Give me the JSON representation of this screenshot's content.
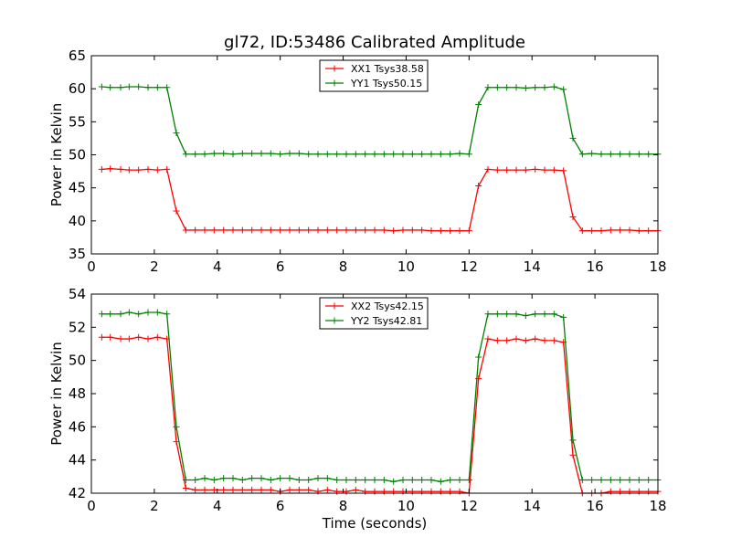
{
  "figure": {
    "title": "gl72, ID:53486 Calibrated Amplitude",
    "xlabel": "Time (seconds)"
  },
  "chart_data": [
    {
      "type": "line",
      "title": "gl72, ID:53486 Calibrated Amplitude",
      "xlabel": "",
      "ylabel": "Power in Kelvin",
      "xlim": [
        0,
        18
      ],
      "ylim": [
        35,
        65
      ],
      "xticks": [
        0,
        2,
        4,
        6,
        8,
        10,
        12,
        14,
        16,
        18
      ],
      "yticks": [
        35,
        40,
        45,
        50,
        55,
        60,
        65
      ],
      "grid": false,
      "legend": "top-center",
      "x": [
        0.33,
        0.6,
        0.93,
        1.2,
        1.5,
        1.8,
        2.1,
        2.4,
        2.7,
        3.0,
        3.3,
        3.6,
        3.9,
        4.2,
        4.5,
        4.8,
        5.1,
        5.4,
        5.7,
        6.0,
        6.3,
        6.6,
        6.9,
        7.2,
        7.5,
        7.8,
        8.1,
        8.4,
        8.7,
        9.0,
        9.3,
        9.6,
        9.9,
        10.2,
        10.5,
        10.8,
        11.1,
        11.4,
        11.7,
        12.0,
        12.3,
        12.6,
        12.9,
        13.2,
        13.5,
        13.8,
        14.1,
        14.4,
        14.7,
        15.0,
        15.3,
        15.6,
        15.9,
        16.2,
        16.5,
        16.8,
        17.1,
        17.4,
        17.7,
        18.0
      ],
      "series": [
        {
          "name": "XX1 Tsys38.58",
          "color": "#ff0000",
          "values": [
            47.8,
            47.9,
            47.8,
            47.7,
            47.7,
            47.8,
            47.7,
            47.8,
            41.5,
            38.6,
            38.6,
            38.6,
            38.6,
            38.6,
            38.6,
            38.6,
            38.6,
            38.6,
            38.6,
            38.6,
            38.6,
            38.6,
            38.6,
            38.6,
            38.6,
            38.6,
            38.6,
            38.6,
            38.6,
            38.6,
            38.6,
            38.5,
            38.6,
            38.6,
            38.6,
            38.5,
            38.5,
            38.5,
            38.5,
            38.5,
            45.3,
            47.8,
            47.7,
            47.7,
            47.7,
            47.7,
            47.8,
            47.7,
            47.7,
            47.6,
            40.6,
            38.5,
            38.5,
            38.5,
            38.6,
            38.6,
            38.6,
            38.5,
            38.5,
            38.5
          ]
        },
        {
          "name": "YY1 Tsys50.15",
          "color": "#008000",
          "values": [
            60.3,
            60.2,
            60.2,
            60.3,
            60.3,
            60.2,
            60.2,
            60.2,
            53.3,
            50.1,
            50.1,
            50.1,
            50.2,
            50.2,
            50.1,
            50.2,
            50.2,
            50.2,
            50.2,
            50.1,
            50.2,
            50.2,
            50.1,
            50.1,
            50.1,
            50.1,
            50.1,
            50.1,
            50.1,
            50.1,
            50.1,
            50.1,
            50.1,
            50.1,
            50.1,
            50.1,
            50.1,
            50.1,
            50.2,
            50.1,
            57.6,
            60.2,
            60.2,
            60.2,
            60.2,
            60.1,
            60.2,
            60.2,
            60.3,
            59.9,
            52.5,
            50.1,
            50.2,
            50.1,
            50.1,
            50.1,
            50.1,
            50.1,
            50.1,
            50.1
          ]
        }
      ]
    },
    {
      "type": "line",
      "title": "",
      "xlabel": "Time (seconds)",
      "ylabel": "Power in Kelvin",
      "xlim": [
        0,
        18
      ],
      "ylim": [
        42,
        54
      ],
      "xticks": [
        0,
        2,
        4,
        6,
        8,
        10,
        12,
        14,
        16,
        18
      ],
      "yticks": [
        42,
        44,
        46,
        48,
        50,
        52,
        54
      ],
      "grid": false,
      "legend": "top-center",
      "x": [
        0.33,
        0.6,
        0.93,
        1.2,
        1.5,
        1.8,
        2.1,
        2.4,
        2.7,
        3.0,
        3.3,
        3.6,
        3.9,
        4.2,
        4.5,
        4.8,
        5.1,
        5.4,
        5.7,
        6.0,
        6.3,
        6.6,
        6.9,
        7.2,
        7.5,
        7.8,
        8.1,
        8.4,
        8.7,
        9.0,
        9.3,
        9.6,
        9.9,
        10.2,
        10.5,
        10.8,
        11.1,
        11.4,
        11.7,
        12.0,
        12.3,
        12.6,
        12.9,
        13.2,
        13.5,
        13.8,
        14.1,
        14.4,
        14.7,
        15.0,
        15.3,
        15.6,
        15.9,
        16.2,
        16.5,
        16.8,
        17.1,
        17.4,
        17.7,
        18.0
      ],
      "series": [
        {
          "name": "XX2 Tsys42.15",
          "color": "#ff0000",
          "values": [
            51.4,
            51.4,
            51.3,
            51.3,
            51.4,
            51.3,
            51.4,
            51.3,
            45.1,
            42.3,
            42.2,
            42.2,
            42.2,
            42.2,
            42.2,
            42.2,
            42.2,
            42.2,
            42.2,
            42.1,
            42.2,
            42.2,
            42.2,
            42.1,
            42.2,
            42.1,
            42.1,
            42.2,
            42.1,
            42.1,
            42.1,
            42.1,
            42.1,
            42.1,
            42.1,
            42.1,
            42.1,
            42.1,
            42.1,
            42.0,
            48.9,
            51.3,
            51.2,
            51.2,
            51.3,
            51.2,
            51.3,
            51.2,
            51.2,
            51.1,
            44.3,
            42.0,
            42.0,
            42.0,
            42.1,
            42.1,
            42.1,
            42.1,
            42.1,
            42.1
          ]
        },
        {
          "name": "YY2 Tsys42.81",
          "color": "#008000",
          "values": [
            52.8,
            52.8,
            52.8,
            52.9,
            52.8,
            52.9,
            52.9,
            52.8,
            46.0,
            42.8,
            42.8,
            42.9,
            42.8,
            42.9,
            42.9,
            42.8,
            42.9,
            42.9,
            42.8,
            42.9,
            42.9,
            42.8,
            42.8,
            42.9,
            42.9,
            42.8,
            42.8,
            42.8,
            42.8,
            42.8,
            42.8,
            42.7,
            42.8,
            42.8,
            42.8,
            42.8,
            42.7,
            42.8,
            42.8,
            42.8,
            50.2,
            52.8,
            52.8,
            52.8,
            52.8,
            52.7,
            52.8,
            52.8,
            52.8,
            52.6,
            45.2,
            42.8,
            42.8,
            42.8,
            42.8,
            42.8,
            42.8,
            42.8,
            42.8,
            42.8
          ]
        }
      ]
    }
  ]
}
